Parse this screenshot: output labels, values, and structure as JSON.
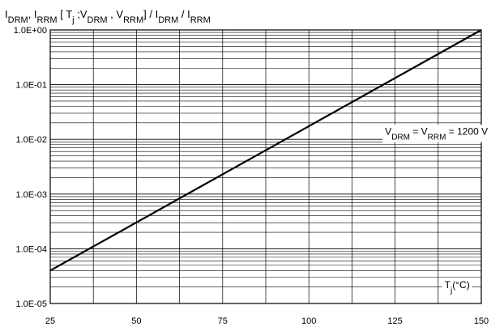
{
  "chart_data": {
    "type": "line",
    "title": {
      "parts": [
        {
          "t": "I",
          "sub": "DRM"
        },
        {
          "t": ", I",
          "sub": "RRM"
        },
        {
          "t": " [ T",
          "sub": "j"
        },
        {
          "t": " ;V",
          "sub": "DRM"
        },
        {
          "t": " , V",
          "sub": "RRM"
        },
        {
          "t": "] / I",
          "sub": "DRM"
        },
        {
          "t": " / I",
          "sub": "RRM"
        }
      ]
    },
    "x_axis": {
      "range": [
        25,
        150
      ],
      "ticks": [
        25,
        50,
        75,
        100,
        125,
        150
      ],
      "tick_labels": [
        "25",
        "50",
        "75",
        "100",
        "125",
        "150"
      ]
    },
    "y_axis": {
      "scale": "log",
      "range": [
        1e-05,
        1
      ],
      "decades": [
        1e-05,
        0.0001,
        0.001,
        0.01,
        0.1,
        1
      ],
      "tick_labels": [
        "1.0E-05",
        "1.0E-04",
        "1.0E-03",
        "1.0E-02",
        "1.0E-01",
        "1.0E+00"
      ]
    },
    "grid": {
      "major": true,
      "minor_log": true,
      "vertical_minor_step": 12.5
    },
    "series": [
      {
        "points": [
          [
            25,
            4e-05
          ],
          [
            150,
            1
          ]
        ],
        "color": "#000000"
      }
    ],
    "annotations": [
      {
        "parts": [
          {
            "t": "V",
            "sub": "DRM"
          },
          {
            "t": " = V",
            "sub": "RRM"
          },
          {
            "t": " = 1200 V",
            "sub": ""
          }
        ],
        "x": 137,
        "y": 0.014
      },
      {
        "parts": [
          {
            "t": "T",
            "sub": "j"
          },
          {
            "t": "(°C)",
            "sub": ""
          }
        ],
        "x": 143,
        "y": 2.2e-05
      }
    ]
  }
}
